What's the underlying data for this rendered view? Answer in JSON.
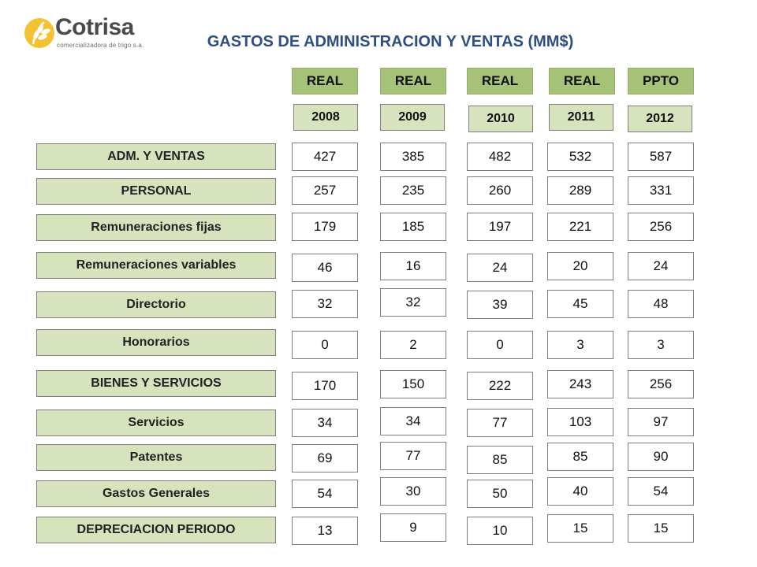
{
  "brand": {
    "name": "Cotrisa",
    "tagline": "comercializadora de trigo s.a.",
    "color": "#f2c230"
  },
  "title": "GASTOS DE ADMINISTRACION Y VENTAS (MM$)",
  "columns": [
    {
      "type": "REAL",
      "year": "2008"
    },
    {
      "type": "REAL",
      "year": "2009"
    },
    {
      "type": "REAL",
      "year": "2010"
    },
    {
      "type": "REAL",
      "year": "2011"
    },
    {
      "type": "PPTO",
      "year": "2012"
    }
  ],
  "rows": [
    {
      "label": "ADM. Y VENTAS",
      "values": [
        "427",
        "385",
        "482",
        "532",
        "587"
      ]
    },
    {
      "label": "PERSONAL",
      "values": [
        "257",
        "235",
        "260",
        "289",
        "331"
      ]
    },
    {
      "label": "Remuneraciones fijas",
      "values": [
        "179",
        "185",
        "197",
        "221",
        "256"
      ]
    },
    {
      "label": "Remuneraciones variables",
      "values": [
        "46",
        "16",
        "24",
        "20",
        "24"
      ]
    },
    {
      "label": "Directorio",
      "values": [
        "32",
        "32",
        "39",
        "45",
        "48"
      ]
    },
    {
      "label": "Honorarios",
      "values": [
        "0",
        "2",
        "0",
        "3",
        "3"
      ]
    },
    {
      "label": "BIENES Y SERVICIOS",
      "values": [
        "170",
        "150",
        "222",
        "243",
        "256"
      ]
    },
    {
      "label": "Servicios",
      "values": [
        "34",
        "34",
        "77",
        "103",
        "97"
      ]
    },
    {
      "label": "Patentes",
      "values": [
        "69",
        "77",
        "85",
        "85",
        "90"
      ]
    },
    {
      "label": "Gastos Generales",
      "values": [
        "54",
        "30",
        "50",
        "40",
        "54"
      ]
    },
    {
      "label": "DEPRECIACION PERIODO",
      "values": [
        "13",
        "9",
        "10",
        "15",
        "15"
      ]
    }
  ]
}
